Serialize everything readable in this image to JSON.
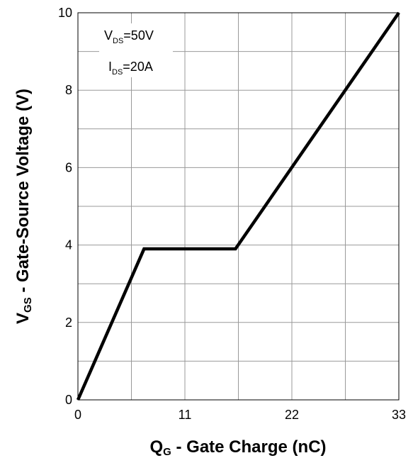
{
  "chart_data": {
    "type": "line",
    "xlabel_main": "Q",
    "xlabel_sub": "G",
    "xlabel_rest": " - Gate Charge (nC)",
    "ylabel_main": "V",
    "ylabel_sub": "GS",
    "ylabel_rest": " - Gate-Source Voltage (V)",
    "xlim": [
      0,
      33
    ],
    "ylim": [
      0,
      10
    ],
    "xticks": [
      0,
      11,
      22,
      33
    ],
    "yticks": [
      0,
      2,
      4,
      6,
      8,
      10
    ],
    "x_gridlines": [
      0,
      5.5,
      11,
      16.5,
      22,
      27.5,
      33
    ],
    "y_gridlines": [
      0,
      1,
      2,
      3,
      4,
      5,
      6,
      7,
      8,
      9,
      10
    ],
    "grid": true,
    "series": [
      {
        "x": [
          0,
          6.8,
          16.2,
          33
        ],
        "y": [
          0,
          3.9,
          3.9,
          10
        ]
      }
    ],
    "annotations": [
      {
        "main": "V",
        "sub": "DS",
        "rest": "=50V"
      },
      {
        "main": "I",
        "sub": "DS",
        "rest": "=20A"
      }
    ],
    "line_color": "#000000",
    "grid_color": "#999999"
  }
}
